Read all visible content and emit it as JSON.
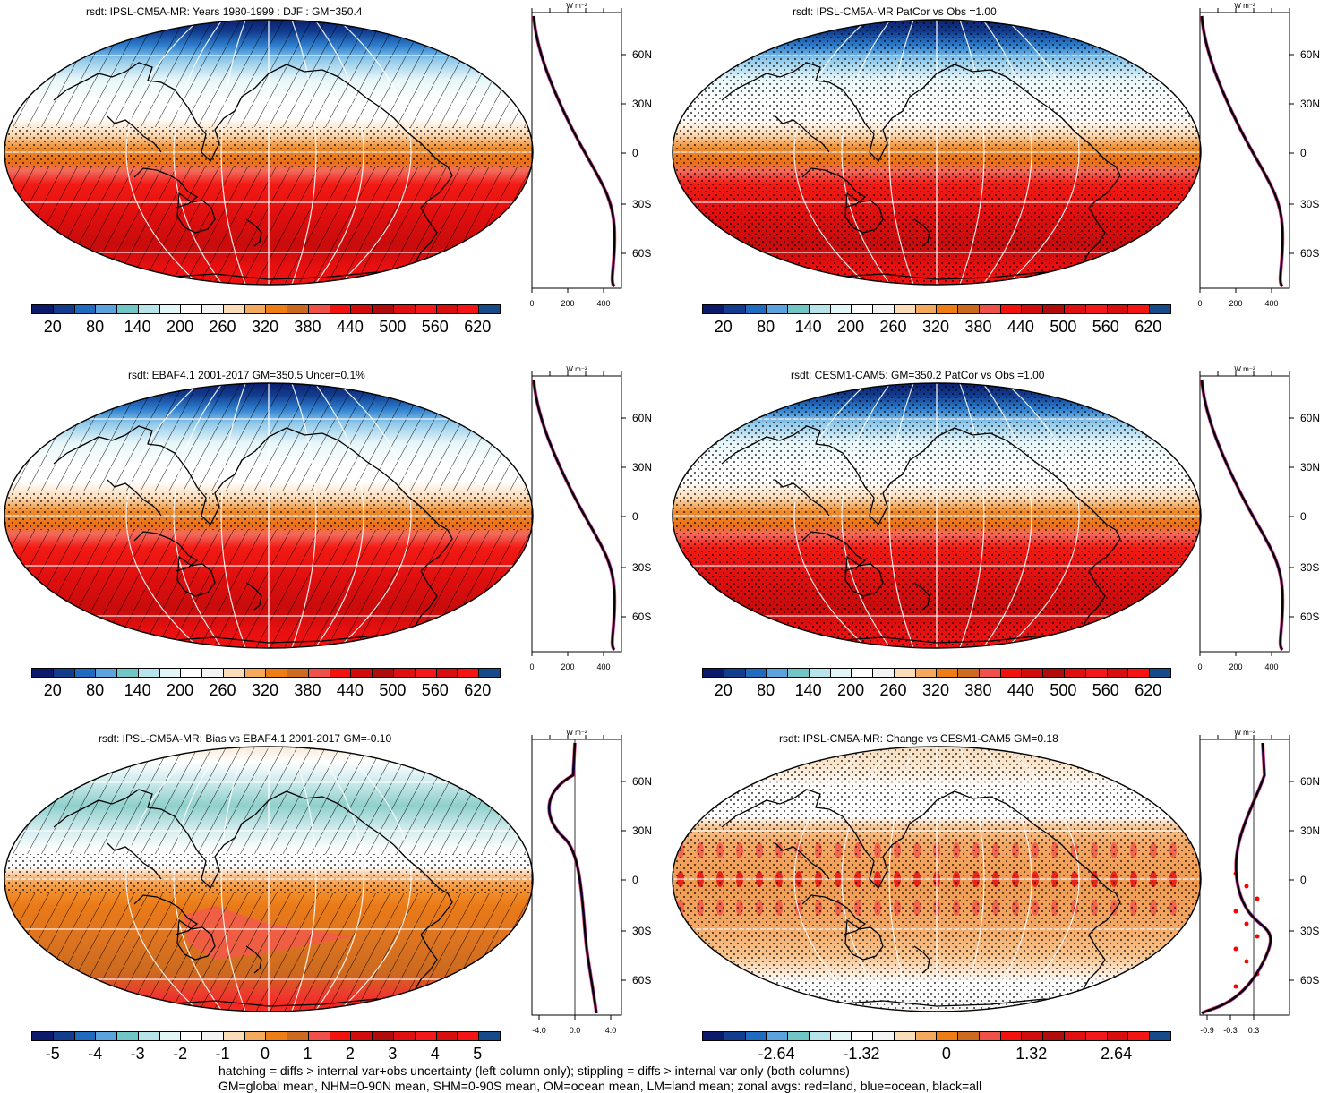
{
  "panels": [
    {
      "title": "rsdt: IPSL-CM5A-MR: Years 1980-1999 : DJF : GM=350.4",
      "scheme": "full",
      "pattern": "hatch"
    },
    {
      "title": "rsdt: IPSL-CM5A-MR PatCor vs Obs =1.00",
      "scheme": "full",
      "pattern": "stipple"
    },
    {
      "title": "rsdt: EBAF4.1 2001-2017 GM=350.5 Uncer=0.1%",
      "scheme": "full",
      "pattern": "hatch"
    },
    {
      "title": "rsdt: CESM1-CAM5: GM=350.2 PatCor vs Obs =1.00",
      "scheme": "full",
      "pattern": "stipple"
    },
    {
      "title": "rsdt: IPSL-CM5A-MR: Bias vs EBAF4.1 2001-2017 GM=-0.10",
      "scheme": "bias",
      "pattern": "hatch"
    },
    {
      "title": "rsdt: IPSL-CM5A-MR: Change vs CESM1-CAM5 GM=0.18",
      "scheme": "change",
      "pattern": "stipple"
    }
  ],
  "colorbars": {
    "full": [
      "20",
      "80",
      "140",
      "200",
      "260",
      "320",
      "380",
      "440",
      "500",
      "560",
      "620"
    ],
    "bias": [
      "-5",
      "-4",
      "-3",
      "-2",
      "-1",
      "0",
      "1",
      "2",
      "3",
      "4",
      "5"
    ],
    "change": [
      "-2.64",
      "-1.32",
      "0",
      "1.32",
      "2.64"
    ]
  },
  "palette": [
    "#0b1a6b",
    "#123d8f",
    "#1f6bbf",
    "#5aa3de",
    "#6fc6c4",
    "#b7e3ea",
    "#e2f6f8",
    "#ffffff",
    "#f4f4f4",
    "#fbdcb8",
    "#f5a95c",
    "#ee7d16",
    "#cc6a1f",
    "#f0504a",
    "#f2130f",
    "#d20c0c",
    "#b10c0c",
    "#e00f10",
    "#f4181a",
    "#d80e0e",
    "#f41414",
    "#164a8a"
  ],
  "zonal": {
    "unit": "W m⁻²",
    "lat_labels": [
      "60N",
      "30N",
      "0",
      "30S",
      "60S"
    ],
    "ticks_full": [
      "0",
      "200",
      "400"
    ],
    "ticks_bias": [
      "-4.0",
      "0.0",
      "4.0"
    ],
    "ticks_change": [
      "-0.9",
      "-0.3",
      "0.3"
    ]
  },
  "footer": {
    "line1": "hatching = diffs > internal var+obs uncertainty (left column only); stippling = diffs > internal var only (both columns)",
    "line2": "GM=global mean, NHM=0-90N mean, SHM=0-90S mean, OM=ocean mean, LM=land mean; zonal avgs: red=land, blue=ocean, black=all"
  },
  "colors": {
    "land": "#ff0000",
    "ocean": "#0000ff",
    "all": "#000000"
  }
}
